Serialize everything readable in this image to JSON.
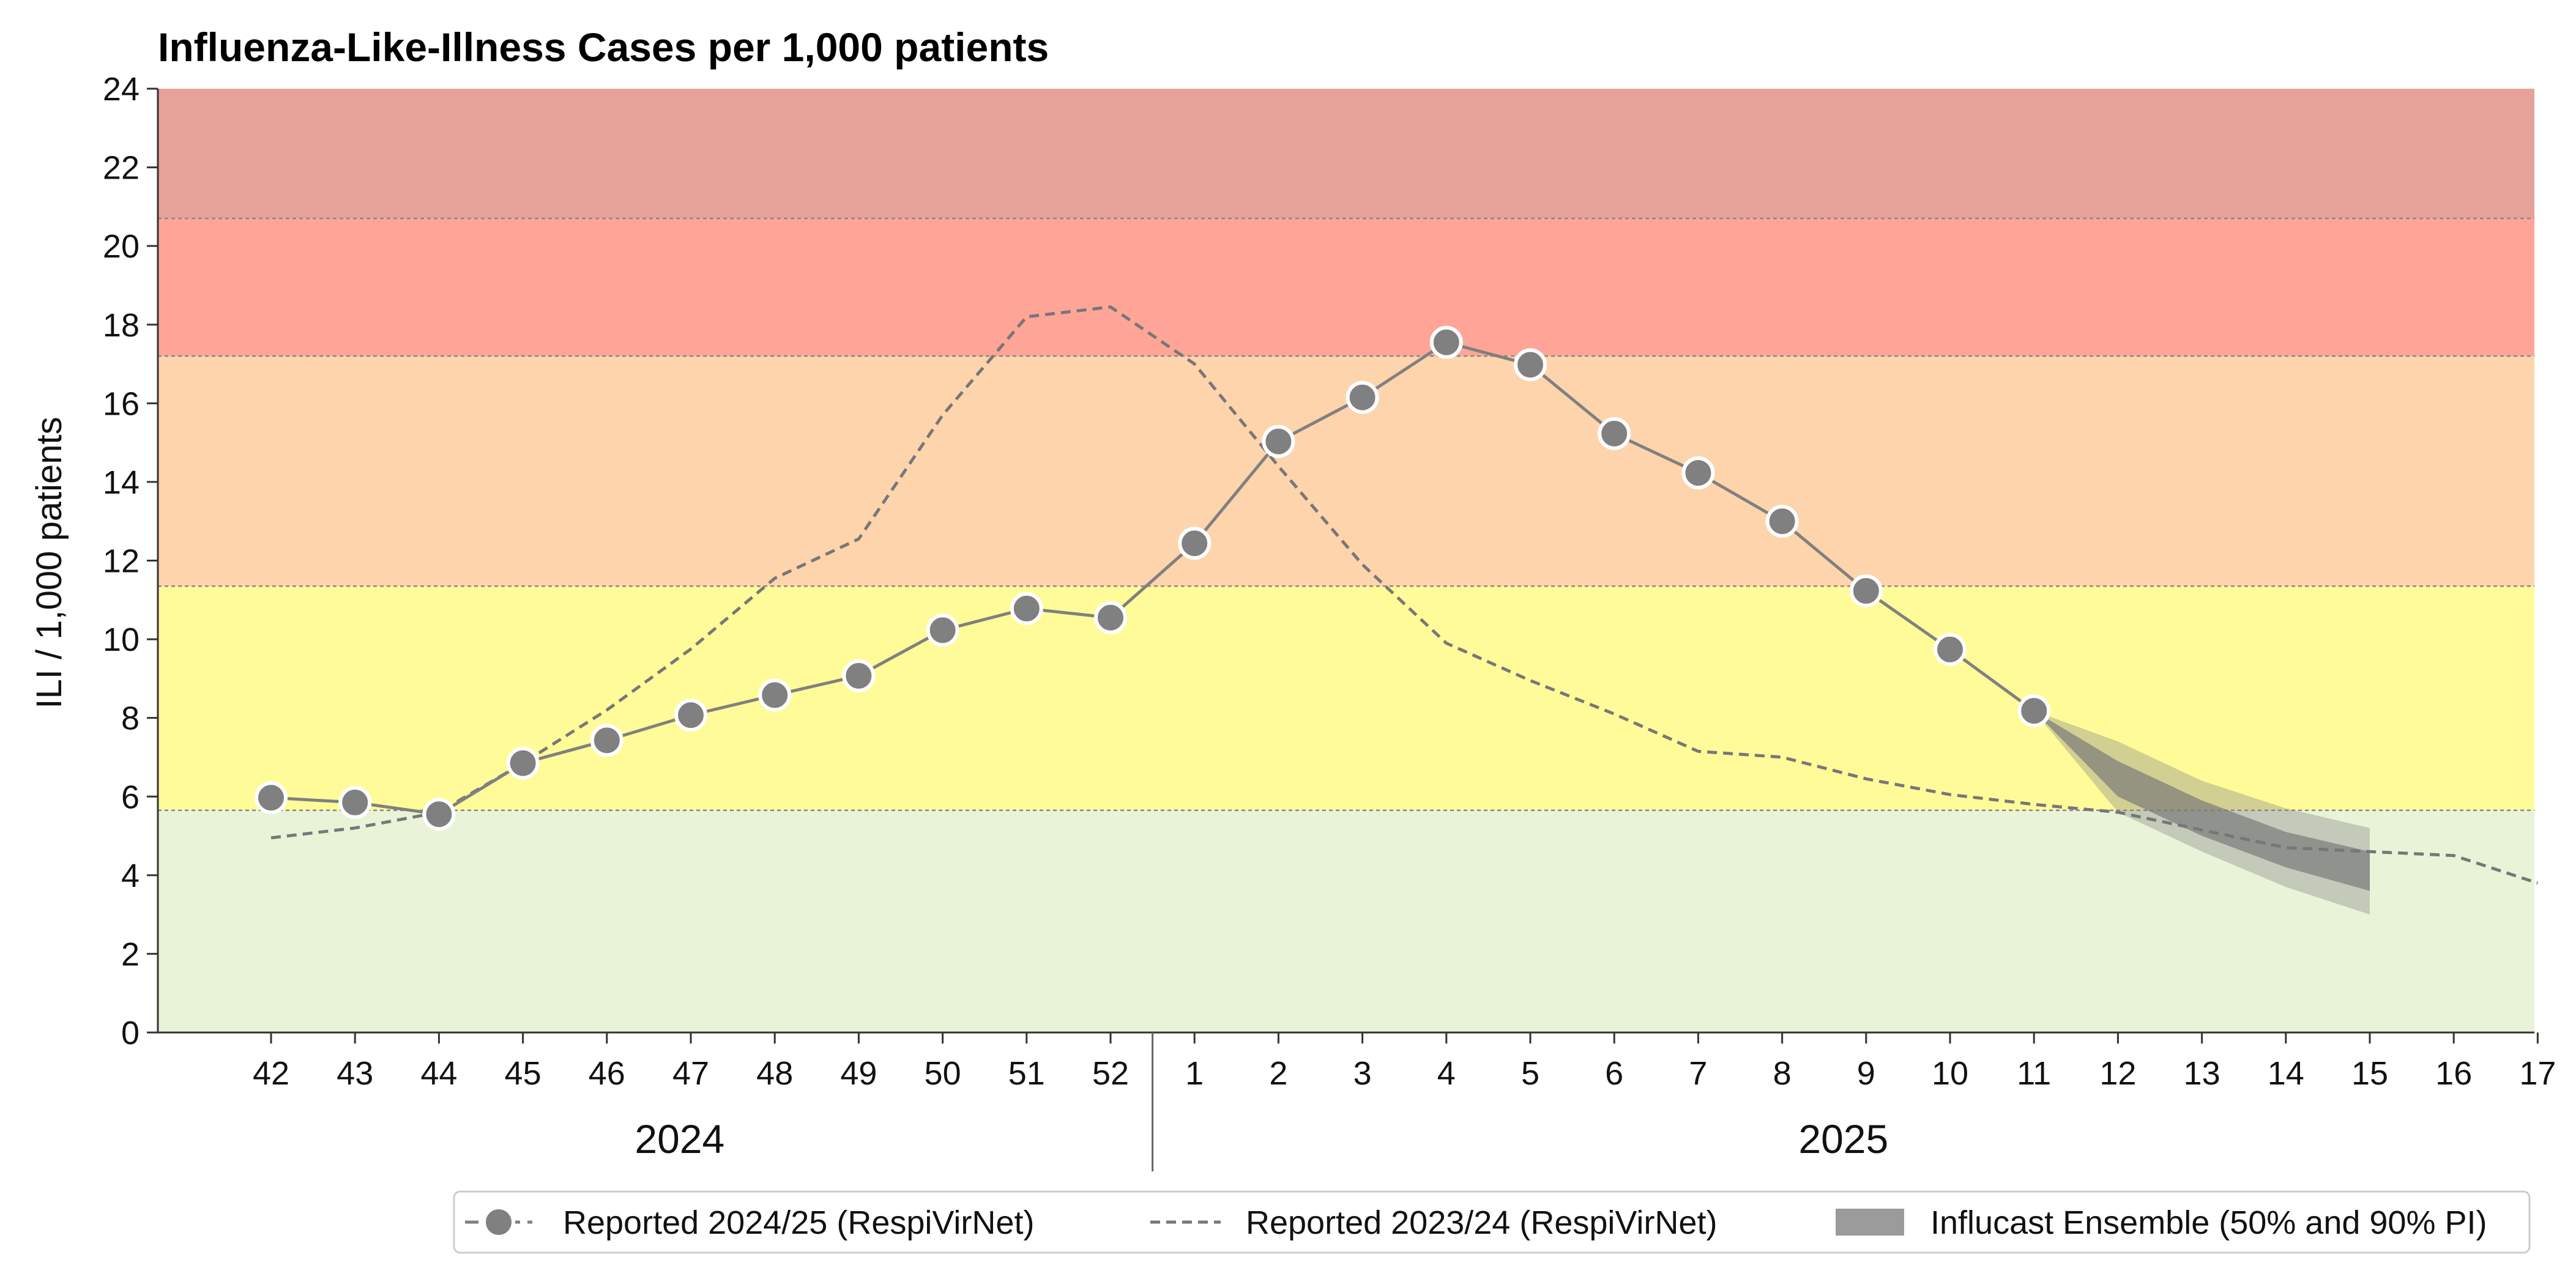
{
  "chart_data": {
    "type": "line",
    "title": "Influenza-Like-Illness Cases per 1,000 patients",
    "ylabel": "ILI / 1,000 patients",
    "ylim": [
      0,
      24
    ],
    "yticks": [
      0,
      2,
      4,
      6,
      8,
      10,
      12,
      14,
      16,
      18,
      20,
      22,
      24
    ],
    "x_week_labels": [
      "42",
      "43",
      "44",
      "45",
      "46",
      "47",
      "48",
      "49",
      "50",
      "51",
      "52",
      "1",
      "2",
      "3",
      "4",
      "5",
      "6",
      "7",
      "8",
      "9",
      "10",
      "11",
      "12",
      "13",
      "14",
      "15",
      "16",
      "17"
    ],
    "year_labels": [
      "2024",
      "2025"
    ],
    "intensity_bands": [
      {
        "from": 0,
        "to": 5.65,
        "color": "#e8f3d8"
      },
      {
        "from": 5.65,
        "to": 11.35,
        "color": "#fffb98"
      },
      {
        "from": 11.35,
        "to": 17.2,
        "color": "#fed4ac"
      },
      {
        "from": 17.2,
        "to": 20.7,
        "color": "#fea598"
      },
      {
        "from": 20.7,
        "to": 24,
        "color": "#e6a199"
      }
    ],
    "series": [
      {
        "name": "Reported 2024/25 (RespiVirNet)",
        "style": "solid-markers",
        "color": "#808080",
        "values": [
          5.97,
          5.85,
          5.55,
          6.85,
          7.43,
          8.07,
          8.58,
          9.07,
          10.23,
          10.78,
          10.55,
          12.44,
          15.03,
          16.15,
          17.55,
          16.98,
          15.23,
          14.23,
          13.0,
          11.23,
          9.74,
          8.18
        ]
      },
      {
        "name": "Reported 2023/24 (RespiVirNet)",
        "style": "dashed",
        "color": "#777777",
        "values": [
          4.95,
          5.2,
          5.6,
          6.85,
          8.2,
          9.75,
          11.55,
          12.55,
          15.7,
          18.2,
          18.45,
          17.0,
          14.4,
          11.9,
          9.9,
          8.95,
          8.1,
          7.15,
          7.0,
          6.45,
          6.05,
          5.8,
          5.6,
          5.15,
          4.7,
          4.6,
          4.5,
          3.8
        ]
      },
      {
        "name": "Influcast Ensemble (50% and 90% PI)",
        "style": "band",
        "color": "#808080",
        "x_weeks": [
          "11",
          "12",
          "13",
          "14",
          "15"
        ],
        "pi90_low": [
          8.18,
          5.6,
          4.6,
          3.7,
          3.0
        ],
        "pi90_high": [
          8.18,
          7.4,
          6.4,
          5.7,
          5.2
        ],
        "pi50_low": [
          8.18,
          6.0,
          5.0,
          4.2,
          3.6
        ],
        "pi50_high": [
          8.18,
          6.9,
          5.9,
          5.1,
          4.6
        ]
      }
    ],
    "legend_position": "bottom-right"
  }
}
